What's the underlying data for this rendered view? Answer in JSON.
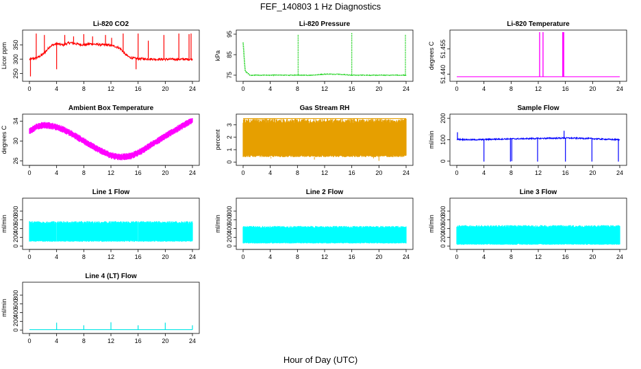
{
  "figure": {
    "title": "FEF_140803  1 Hz Diagnostics",
    "xlabel": "Hour of Day (UTC)"
  },
  "chart_data": [
    {
      "id": "li820-co2",
      "type": "line",
      "title": "Li-820 CO2",
      "xlabel": "",
      "ylabel": "Licor ppm",
      "xlim": [
        0,
        24
      ],
      "ylim": [
        230,
        395
      ],
      "xticks": [
        0,
        4,
        8,
        12,
        16,
        20,
        24
      ],
      "yticks": [
        250,
        300,
        350
      ],
      "color": "#ff0000",
      "series": [
        {
          "x": [
            0,
            0.5,
            1,
            1.5,
            2,
            2.5,
            3,
            3.5,
            4,
            4.5,
            5,
            5.5,
            6,
            6.5,
            7,
            7.5,
            8,
            8.5,
            9,
            9.5,
            10,
            10.5,
            11,
            11.5,
            12,
            12.5,
            13,
            13.5,
            14,
            14.5,
            15,
            15.5,
            16,
            16.5,
            17,
            17.5,
            18,
            18.5,
            19,
            19.5,
            20,
            20.5,
            21,
            21.5,
            22,
            22.5,
            23,
            23.5,
            24
          ],
          "y": [
            300,
            302,
            304,
            310,
            318,
            330,
            345,
            350,
            355,
            352,
            350,
            355,
            358,
            356,
            354,
            352,
            350,
            352,
            354,
            353,
            352,
            351,
            350,
            350,
            348,
            346,
            342,
            335,
            320,
            310,
            305,
            303,
            302,
            302,
            301,
            301,
            301,
            300,
            300,
            300,
            300,
            300,
            300,
            300,
            300,
            300,
            300,
            300,
            300
          ]
        }
      ],
      "spikes": [
        [
          0.15,
          240
        ],
        [
          1.0,
          390
        ],
        [
          2.2,
          385
        ],
        [
          4.0,
          265
        ],
        [
          5.2,
          385
        ],
        [
          6.5,
          380
        ],
        [
          8.0,
          388
        ],
        [
          9.3,
          380
        ],
        [
          11.2,
          385
        ],
        [
          12.1,
          375
        ],
        [
          13.8,
          390
        ],
        [
          15.7,
          265
        ],
        [
          16.0,
          390
        ],
        [
          17.5,
          365
        ],
        [
          19.8,
          385
        ],
        [
          22.0,
          390
        ],
        [
          23.5,
          388
        ],
        [
          23.8,
          390
        ]
      ]
    },
    {
      "id": "li820-pressure",
      "type": "line",
      "title": "Li-820 Pressure",
      "xlabel": "",
      "ylabel": "kPa",
      "xlim": [
        0,
        24
      ],
      "ylim": [
        73,
        96
      ],
      "xticks": [
        0,
        4,
        8,
        12,
        16,
        20,
        24
      ],
      "yticks": [
        75,
        85,
        95
      ],
      "color": "#00cc00",
      "series": [
        {
          "x": [
            0,
            0.3,
            1,
            2,
            4,
            6,
            8,
            10,
            12,
            14,
            16,
            18,
            20,
            22,
            24
          ],
          "y": [
            91,
            77,
            75,
            75,
            75,
            75,
            75,
            75,
            75.5,
            75.5,
            75,
            75,
            75,
            75,
            75
          ]
        }
      ],
      "spikes": [
        [
          8.1,
          95
        ],
        [
          16.0,
          95.5
        ],
        [
          23.9,
          95
        ]
      ]
    },
    {
      "id": "li820-temperature",
      "type": "line",
      "title": "Li-820 Temperature",
      "xlabel": "",
      "ylabel": "degrees C",
      "xlim": [
        0,
        24
      ],
      "ylim": [
        51.437,
        51.465
      ],
      "xticks": [
        0,
        4,
        8,
        12,
        16,
        20,
        24
      ],
      "yticks": [
        51.44,
        51.455
      ],
      "ytick_labels": [
        "51.440",
        "51.455"
      ],
      "color": "#ff00ff",
      "series": [
        {
          "x": [
            0,
            24
          ],
          "y": [
            51.4385,
            51.4385
          ]
        }
      ],
      "spikes": [
        [
          12.2,
          51.465
        ],
        [
          12.7,
          51.465
        ],
        [
          15.6,
          51.465
        ],
        [
          15.75,
          51.465
        ]
      ]
    },
    {
      "id": "ambient-box-temperature",
      "type": "line",
      "title": "Ambient Box Temperature",
      "xlabel": "",
      "ylabel": "degrees C",
      "xlim": [
        0,
        24
      ],
      "ylim": [
        25.5,
        35
      ],
      "xticks": [
        0,
        4,
        8,
        12,
        16,
        20,
        24
      ],
      "yticks": [
        26,
        30,
        34
      ],
      "color": "#ff00ff",
      "series": [
        {
          "x": [
            0,
            1,
            2,
            3,
            4,
            5,
            6,
            7,
            8,
            9,
            10,
            11,
            12,
            13,
            14,
            15,
            16,
            17,
            18,
            19,
            20,
            21,
            22,
            23,
            24
          ],
          "y": [
            32,
            32.8,
            33.2,
            33.1,
            32.8,
            32.3,
            31.6,
            30.8,
            30,
            29.2,
            28.4,
            27.7,
            27.1,
            26.8,
            26.8,
            27,
            27.6,
            28.4,
            29.3,
            30.1,
            31,
            31.8,
            32.6,
            33.4,
            34.2
          ]
        }
      ],
      "band": 0.7
    },
    {
      "id": "gas-stream-rh",
      "type": "line",
      "title": "Gas Stream RH",
      "xlabel": "",
      "ylabel": "percent",
      "xlim": [
        0,
        24
      ],
      "ylim": [
        -0.1,
        3.7
      ],
      "xticks": [
        0,
        4,
        8,
        12,
        16,
        20,
        24
      ],
      "yticks": [
        0,
        1,
        2,
        3
      ],
      "color": "#e69f00",
      "series": [
        {
          "x": [
            0,
            24
          ],
          "y": [
            3.5,
            3.5
          ]
        }
      ],
      "band_range": [
        0.4,
        3.5
      ],
      "drops": [
        [
          1,
          0.8
        ],
        [
          2.5,
          0.6
        ],
        [
          4.1,
          0.3
        ],
        [
          5.5,
          0.9
        ],
        [
          7.8,
          0.5
        ],
        [
          9.0,
          0.7
        ],
        [
          10.5,
          0.2
        ],
        [
          12.0,
          0.8
        ],
        [
          13.3,
          0.6
        ],
        [
          15.0,
          0.9
        ],
        [
          16.5,
          0.5
        ],
        [
          17.5,
          0.7
        ],
        [
          19.2,
          0.3
        ],
        [
          20.0,
          0.1
        ],
        [
          21.5,
          0.6
        ],
        [
          22.5,
          0.9
        ],
        [
          23.5,
          0.4
        ]
      ]
    },
    {
      "id": "sample-flow",
      "type": "line",
      "title": "Sample Flow",
      "xlabel": "",
      "ylabel": "ml/min",
      "xlim": [
        0,
        24
      ],
      "ylim": [
        -10,
        210
      ],
      "xticks": [
        0,
        4,
        8,
        12,
        16,
        20,
        24
      ],
      "yticks": [
        0,
        100,
        200
      ],
      "color": "#0000ff",
      "series": [
        {
          "x": [
            0,
            2,
            4,
            6,
            8,
            10,
            12,
            14,
            16,
            18,
            20,
            22,
            24
          ],
          "y": [
            102,
            100,
            101,
            103,
            104,
            105,
            106,
            107,
            108,
            107,
            105,
            102,
            100
          ]
        }
      ],
      "spikes": [
        [
          0.1,
          135
        ],
        [
          15.8,
          142
        ]
      ],
      "drops": [
        [
          4.0,
          -2
        ],
        [
          7.9,
          -2
        ],
        [
          8.1,
          0
        ],
        [
          11.9,
          -2
        ],
        [
          16.0,
          -2
        ],
        [
          19.9,
          -2
        ],
        [
          23.8,
          -2
        ]
      ]
    },
    {
      "id": "line-1-flow",
      "type": "area",
      "title": "Line 1 Flow",
      "xlabel": "",
      "ylabel": "ml/min",
      "xlim": [
        0,
        24
      ],
      "ylim": [
        -30,
        1050
      ],
      "xticks": [
        0,
        4,
        8,
        12,
        16,
        20,
        24
      ],
      "yticks": [
        0,
        200,
        400,
        600,
        800
      ],
      "color": "#00ffff",
      "band_range": [
        100,
        570
      ],
      "gaps": [
        3.95,
        7.95,
        11.95,
        15.95,
        19.95
      ]
    },
    {
      "id": "line-2-flow",
      "type": "area",
      "title": "Line 2 Flow",
      "xlabel": "",
      "ylabel": "ml/min",
      "xlim": [
        0,
        24
      ],
      "ylim": [
        -30,
        1050
      ],
      "xticks": [
        0,
        4,
        8,
        12,
        16,
        20,
        24
      ],
      "yticks": [
        0,
        200,
        400,
        600,
        800
      ],
      "color": "#00ffff",
      "band_range": [
        60,
        460
      ],
      "gaps": [
        4.0,
        8.0,
        12.0,
        16.0,
        20.0
      ]
    },
    {
      "id": "line-3-flow",
      "type": "area",
      "title": "Line 3 Flow",
      "xlabel": "",
      "ylabel": "ml/min",
      "xlim": [
        0,
        24
      ],
      "ylim": [
        -30,
        1050
      ],
      "xticks": [
        0,
        4,
        8,
        12,
        16,
        20,
        24
      ],
      "yticks": [
        0,
        200,
        400,
        600,
        800
      ],
      "color": "#00ffff",
      "band_range": [
        30,
        480
      ],
      "gaps": [
        4.0,
        8.0,
        12.0,
        16.0,
        20.0
      ]
    },
    {
      "id": "line-4-flow",
      "type": "line",
      "title": "Line 4 (LT) Flow",
      "xlabel": "",
      "ylabel": "ml/min",
      "xlim": [
        0,
        24
      ],
      "ylim": [
        -30,
        1050
      ],
      "xticks": [
        0,
        4,
        8,
        12,
        16,
        20,
        24
      ],
      "yticks": [
        0,
        200,
        400,
        600,
        800
      ],
      "color": "#00e5e5",
      "series": [
        {
          "x": [
            0,
            24
          ],
          "y": [
            10,
            10
          ]
        }
      ],
      "spikes": [
        [
          4.0,
          170
        ],
        [
          8.0,
          110
        ],
        [
          12.0,
          180
        ],
        [
          16.0,
          110
        ],
        [
          20.0,
          170
        ],
        [
          24.0,
          110
        ]
      ]
    }
  ]
}
